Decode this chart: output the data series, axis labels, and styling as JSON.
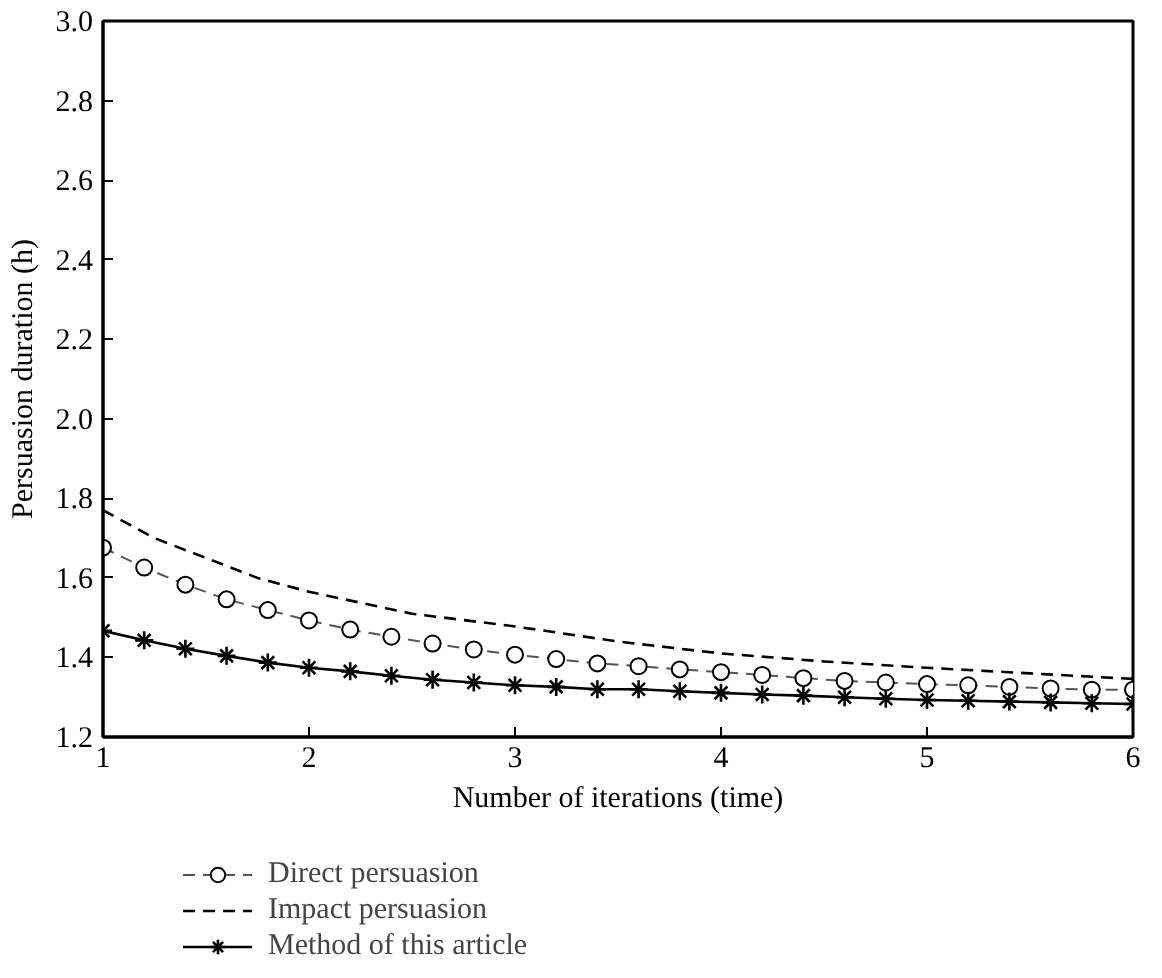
{
  "chart_data": {
    "type": "line",
    "xlabel": "Number of iterations (time)",
    "ylabel": "Persuasion duration (h)",
    "xlim": [
      1,
      6
    ],
    "ylim": [
      1.2,
      3.0
    ],
    "xticks": [
      1,
      2,
      3,
      4,
      5,
      6
    ],
    "yticks": [
      {
        "value": 1.2,
        "label": "1.2"
      },
      {
        "value": 1.4,
        "label": "1.4"
      },
      {
        "value": 1.6,
        "label": "1.6"
      },
      {
        "value": 1.8,
        "label": "1.8"
      },
      {
        "value": 2.0,
        "label": "2.0"
      },
      {
        "value": 2.2,
        "label": "2.2"
      },
      {
        "value": 2.4,
        "label": "2.4"
      },
      {
        "value": 2.6,
        "label": "2.6"
      },
      {
        "value": 2.8,
        "label": "2.8"
      },
      {
        "value": 3.0,
        "label": "3.0"
      }
    ],
    "grid": false,
    "legend": "bottom",
    "series": [
      {
        "name": "Direct persuasion",
        "color": "#555555",
        "marker": "circle",
        "line_style": "dashed",
        "x": [
          1.0,
          1.2,
          1.4,
          1.6,
          1.8,
          2.0,
          2.2,
          2.4,
          2.6,
          2.8,
          3.0,
          3.2,
          3.4,
          3.6,
          3.8,
          4.0,
          4.2,
          4.4,
          4.6,
          4.8,
          5.0,
          5.2,
          5.4,
          5.6,
          5.8,
          6.0
        ],
        "values": [
          1.676,
          1.626,
          1.583,
          1.546,
          1.519,
          1.493,
          1.47,
          1.452,
          1.435,
          1.42,
          1.407,
          1.396,
          1.385,
          1.378,
          1.37,
          1.363,
          1.356,
          1.348,
          1.341,
          1.337,
          1.333,
          1.33,
          1.326,
          1.322,
          1.319,
          1.319
        ]
      },
      {
        "name": "Impact persuasion",
        "color": "#000000",
        "marker": "none",
        "line_style": "dashed",
        "x": [
          1.0,
          1.25,
          1.5,
          1.75,
          2.0,
          2.5,
          3.0,
          3.5,
          4.0,
          4.5,
          5.0,
          5.5,
          6.0
        ],
        "values": [
          1.77,
          1.7,
          1.65,
          1.6,
          1.565,
          1.51,
          1.478,
          1.44,
          1.41,
          1.39,
          1.374,
          1.36,
          1.346
        ]
      },
      {
        "name": "Method of this article",
        "color": "#000000",
        "marker": "cross",
        "line_style": "solid",
        "x": [
          1.0,
          1.2,
          1.4,
          1.6,
          1.8,
          2.0,
          2.2,
          2.4,
          2.6,
          2.8,
          3.0,
          3.2,
          3.4,
          3.6,
          3.8,
          4.0,
          4.2,
          4.4,
          4.6,
          4.8,
          5.0,
          5.2,
          5.4,
          5.6,
          5.8,
          6.0
        ],
        "values": [
          1.467,
          1.443,
          1.422,
          1.404,
          1.387,
          1.374,
          1.365,
          1.354,
          1.344,
          1.337,
          1.33,
          1.326,
          1.32,
          1.32,
          1.315,
          1.311,
          1.307,
          1.304,
          1.3,
          1.296,
          1.293,
          1.291,
          1.289,
          1.287,
          1.285,
          1.283
        ]
      }
    ]
  }
}
